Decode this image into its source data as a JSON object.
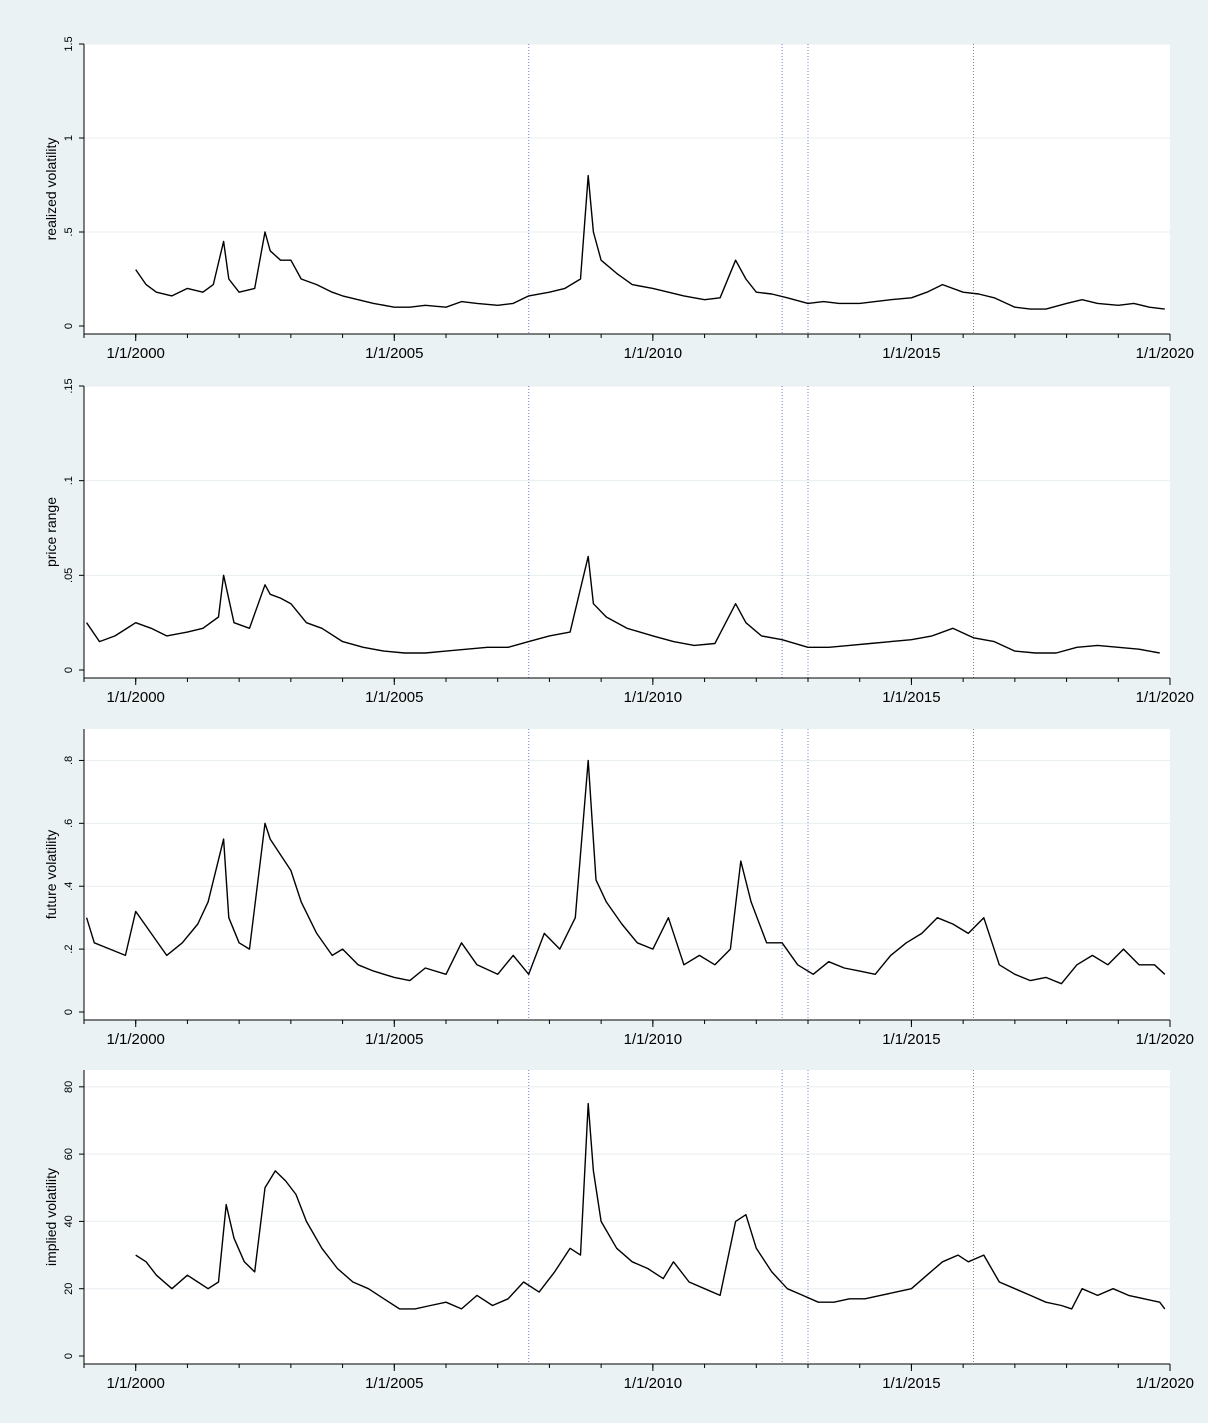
{
  "colors": {
    "background": "#eaf2f3",
    "plot_area": "#ffffff",
    "series_line": "#000000",
    "gridline": "#e8eef0",
    "event_line": "#7080b8"
  },
  "chart_data": [
    {
      "type": "line",
      "ylabel": "realized volatility",
      "ylim": [
        0,
        1.5
      ],
      "yticks": [
        0,
        0.5,
        1,
        1.5
      ],
      "ytick_labels": [
        "0",
        ".5",
        "1",
        "1.5"
      ],
      "xlim": [
        1999.0,
        2020.0
      ],
      "xticks": [
        2000,
        2005,
        2010,
        2015,
        2020
      ],
      "xtick_labels": [
        "1/1/2000",
        "1/1/2005",
        "1/1/2010",
        "1/1/2015",
        "1/1/2020"
      ],
      "event_lines": [
        2007.6,
        2012.5,
        2013.0,
        2016.2
      ],
      "series": [
        {
          "x": [
            2000.0,
            2000.2,
            2000.4,
            2000.7,
            2001.0,
            2001.3,
            2001.5,
            2001.7,
            2001.8,
            2002.0,
            2002.3,
            2002.5,
            2002.6,
            2002.8,
            2003.0,
            2003.2,
            2003.5,
            2003.8,
            2004.0,
            2004.3,
            2004.6,
            2005.0,
            2005.3,
            2005.6,
            2006.0,
            2006.3,
            2006.6,
            2007.0,
            2007.3,
            2007.6,
            2008.0,
            2008.3,
            2008.6,
            2008.75,
            2008.85,
            2009.0,
            2009.3,
            2009.6,
            2010.0,
            2010.3,
            2010.6,
            2011.0,
            2011.3,
            2011.6,
            2011.8,
            2012.0,
            2012.3,
            2012.6,
            2013.0,
            2013.3,
            2013.6,
            2014.0,
            2014.3,
            2014.6,
            2015.0,
            2015.3,
            2015.6,
            2016.0,
            2016.3,
            2016.6,
            2017.0,
            2017.3,
            2017.6,
            2018.0,
            2018.3,
            2018.6,
            2019.0,
            2019.3,
            2019.6,
            2019.9
          ],
          "y": [
            0.3,
            0.22,
            0.18,
            0.16,
            0.2,
            0.18,
            0.22,
            0.45,
            0.25,
            0.18,
            0.2,
            0.5,
            0.4,
            0.35,
            0.35,
            0.25,
            0.22,
            0.18,
            0.16,
            0.14,
            0.12,
            0.1,
            0.1,
            0.11,
            0.1,
            0.13,
            0.12,
            0.11,
            0.12,
            0.16,
            0.18,
            0.2,
            0.25,
            0.8,
            0.5,
            0.35,
            0.28,
            0.22,
            0.2,
            0.18,
            0.16,
            0.14,
            0.15,
            0.35,
            0.25,
            0.18,
            0.17,
            0.15,
            0.12,
            0.13,
            0.12,
            0.12,
            0.13,
            0.14,
            0.15,
            0.18,
            0.22,
            0.18,
            0.17,
            0.15,
            0.1,
            0.09,
            0.09,
            0.12,
            0.14,
            0.12,
            0.11,
            0.12,
            0.1,
            0.09
          ]
        }
      ]
    },
    {
      "type": "line",
      "ylabel": "price range",
      "ylim": [
        0,
        0.15
      ],
      "yticks": [
        0,
        0.05,
        0.1,
        0.15
      ],
      "ytick_labels": [
        "0",
        ".05",
        ".1",
        ".15"
      ],
      "xlim": [
        1999.0,
        2020.0
      ],
      "xticks": [
        2000,
        2005,
        2010,
        2015,
        2020
      ],
      "xtick_labels": [
        "1/1/2000",
        "1/1/2005",
        "1/1/2010",
        "1/1/2015",
        "1/1/2020"
      ],
      "event_lines": [
        2007.6,
        2012.5,
        2013.0,
        2016.2
      ],
      "series": [
        {
          "x": [
            1999.05,
            1999.3,
            1999.6,
            2000.0,
            2000.3,
            2000.6,
            2001.0,
            2001.3,
            2001.6,
            2001.7,
            2001.9,
            2002.2,
            2002.5,
            2002.6,
            2002.8,
            2003.0,
            2003.3,
            2003.6,
            2004.0,
            2004.4,
            2004.8,
            2005.2,
            2005.6,
            2006.0,
            2006.4,
            2006.8,
            2007.2,
            2007.6,
            2008.0,
            2008.4,
            2008.75,
            2008.85,
            2009.1,
            2009.5,
            2010.0,
            2010.4,
            2010.8,
            2011.2,
            2011.6,
            2011.8,
            2012.1,
            2012.5,
            2013.0,
            2013.4,
            2013.8,
            2014.2,
            2014.6,
            2015.0,
            2015.4,
            2015.8,
            2016.2,
            2016.6,
            2017.0,
            2017.4,
            2017.8,
            2018.2,
            2018.6,
            2019.0,
            2019.4,
            2019.8
          ],
          "y": [
            0.025,
            0.015,
            0.018,
            0.025,
            0.022,
            0.018,
            0.02,
            0.022,
            0.028,
            0.05,
            0.025,
            0.022,
            0.045,
            0.04,
            0.038,
            0.035,
            0.025,
            0.022,
            0.015,
            0.012,
            0.01,
            0.009,
            0.009,
            0.01,
            0.011,
            0.012,
            0.012,
            0.015,
            0.018,
            0.02,
            0.06,
            0.035,
            0.028,
            0.022,
            0.018,
            0.015,
            0.013,
            0.014,
            0.035,
            0.025,
            0.018,
            0.016,
            0.012,
            0.012,
            0.013,
            0.014,
            0.015,
            0.016,
            0.018,
            0.022,
            0.017,
            0.015,
            0.01,
            0.009,
            0.009,
            0.012,
            0.013,
            0.012,
            0.011,
            0.009
          ]
        }
      ]
    },
    {
      "type": "line",
      "ylabel": "future volatility",
      "ylim": [
        0,
        0.9
      ],
      "yticks": [
        0,
        0.2,
        0.4,
        0.6,
        0.8
      ],
      "ytick_labels": [
        "0",
        ".2",
        ".4",
        ".6",
        ".8"
      ],
      "xlim": [
        1999.0,
        2020.0
      ],
      "xticks": [
        2000,
        2005,
        2010,
        2015,
        2020
      ],
      "xtick_labels": [
        "1/1/2000",
        "1/1/2005",
        "1/1/2010",
        "1/1/2015",
        "1/1/2020"
      ],
      "event_lines": [
        2007.6,
        2012.5,
        2013.0,
        2016.2
      ],
      "series": [
        {
          "x": [
            1999.05,
            1999.2,
            1999.5,
            1999.8,
            2000.0,
            2000.3,
            2000.6,
            2000.9,
            2001.2,
            2001.4,
            2001.7,
            2001.8,
            2002.0,
            2002.2,
            2002.5,
            2002.6,
            2002.8,
            2003.0,
            2003.2,
            2003.5,
            2003.8,
            2004.0,
            2004.3,
            2004.6,
            2005.0,
            2005.3,
            2005.6,
            2006.0,
            2006.3,
            2006.6,
            2007.0,
            2007.3,
            2007.6,
            2007.9,
            2008.2,
            2008.5,
            2008.75,
            2008.9,
            2009.1,
            2009.4,
            2009.7,
            2010.0,
            2010.3,
            2010.6,
            2010.9,
            2011.2,
            2011.5,
            2011.7,
            2011.9,
            2012.2,
            2012.5,
            2012.8,
            2013.1,
            2013.4,
            2013.7,
            2014.0,
            2014.3,
            2014.6,
            2014.9,
            2015.2,
            2015.5,
            2015.8,
            2016.1,
            2016.4,
            2016.7,
            2017.0,
            2017.3,
            2017.6,
            2017.9,
            2018.2,
            2018.5,
            2018.8,
            2019.1,
            2019.4,
            2019.7,
            2019.9
          ],
          "y": [
            0.3,
            0.22,
            0.2,
            0.18,
            0.32,
            0.25,
            0.18,
            0.22,
            0.28,
            0.35,
            0.55,
            0.3,
            0.22,
            0.2,
            0.6,
            0.55,
            0.5,
            0.45,
            0.35,
            0.25,
            0.18,
            0.2,
            0.15,
            0.13,
            0.11,
            0.1,
            0.14,
            0.12,
            0.22,
            0.15,
            0.12,
            0.18,
            0.12,
            0.25,
            0.2,
            0.3,
            0.8,
            0.42,
            0.35,
            0.28,
            0.22,
            0.2,
            0.3,
            0.15,
            0.18,
            0.15,
            0.2,
            0.48,
            0.35,
            0.22,
            0.22,
            0.15,
            0.12,
            0.16,
            0.14,
            0.13,
            0.12,
            0.18,
            0.22,
            0.25,
            0.3,
            0.28,
            0.25,
            0.3,
            0.15,
            0.12,
            0.1,
            0.11,
            0.09,
            0.15,
            0.18,
            0.15,
            0.2,
            0.15,
            0.15,
            0.12
          ]
        }
      ]
    },
    {
      "type": "line",
      "ylabel": "implied volatility",
      "ylim": [
        0,
        85
      ],
      "yticks": [
        0,
        20,
        40,
        60,
        80
      ],
      "ytick_labels": [
        "0",
        "20",
        "40",
        "60",
        "80"
      ],
      "xlim": [
        1999.0,
        2020.0
      ],
      "xticks": [
        2000,
        2005,
        2010,
        2015,
        2020
      ],
      "xtick_labels": [
        "1/1/2000",
        "1/1/2005",
        "1/1/2010",
        "1/1/2015",
        "1/1/2020"
      ],
      "event_lines": [
        2007.6,
        2012.5,
        2013.0,
        2016.2
      ],
      "series": [
        {
          "x": [
            2000.0,
            2000.2,
            2000.4,
            2000.7,
            2001.0,
            2001.2,
            2001.4,
            2001.6,
            2001.75,
            2001.9,
            2002.1,
            2002.3,
            2002.5,
            2002.7,
            2002.9,
            2003.1,
            2003.3,
            2003.6,
            2003.9,
            2004.2,
            2004.5,
            2004.8,
            2005.1,
            2005.4,
            2005.7,
            2006.0,
            2006.3,
            2006.6,
            2006.9,
            2007.2,
            2007.5,
            2007.8,
            2008.1,
            2008.4,
            2008.6,
            2008.75,
            2008.85,
            2009.0,
            2009.3,
            2009.6,
            2009.9,
            2010.2,
            2010.4,
            2010.7,
            2011.0,
            2011.3,
            2011.6,
            2011.8,
            2012.0,
            2012.3,
            2012.6,
            2012.9,
            2013.2,
            2013.5,
            2013.8,
            2014.1,
            2014.4,
            2014.7,
            2015.0,
            2015.3,
            2015.6,
            2015.9,
            2016.1,
            2016.4,
            2016.7,
            2017.0,
            2017.3,
            2017.6,
            2017.9,
            2018.1,
            2018.3,
            2018.6,
            2018.9,
            2019.2,
            2019.5,
            2019.8,
            2019.9
          ],
          "y": [
            30,
            28,
            24,
            20,
            24,
            22,
            20,
            22,
            45,
            35,
            28,
            25,
            50,
            55,
            52,
            48,
            40,
            32,
            26,
            22,
            20,
            17,
            14,
            14,
            15,
            16,
            14,
            18,
            15,
            17,
            22,
            19,
            25,
            32,
            30,
            75,
            55,
            40,
            32,
            28,
            26,
            23,
            28,
            22,
            20,
            18,
            40,
            42,
            32,
            25,
            20,
            18,
            16,
            16,
            17,
            17,
            18,
            19,
            20,
            24,
            28,
            30,
            28,
            30,
            22,
            20,
            18,
            16,
            15,
            14,
            20,
            18,
            20,
            18,
            17,
            16,
            14
          ]
        }
      ]
    }
  ]
}
